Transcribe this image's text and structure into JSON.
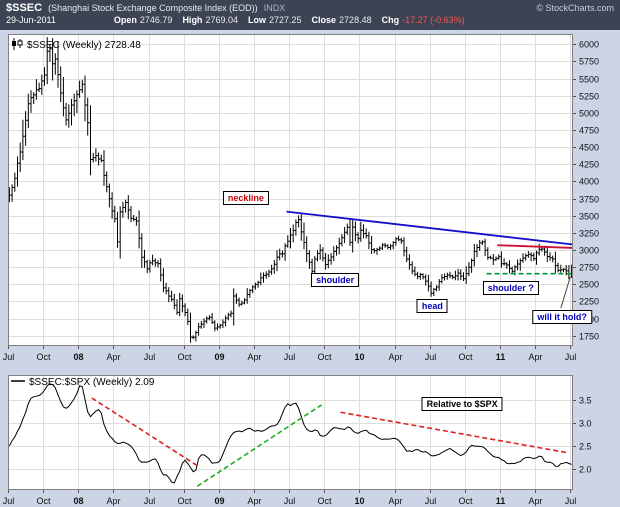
{
  "header": {
    "symbol": "$SSEC",
    "name": "(Shanghai Stock Exchange Composite Index (EOD))",
    "exchange": "INDX",
    "source": "© StockCharts.com",
    "date": "29-Jun-2011",
    "quote": [
      {
        "label": "Open",
        "value": "2746.79"
      },
      {
        "label": "High",
        "value": "2769.04"
      },
      {
        "label": "Low",
        "value": "2727.25"
      },
      {
        "label": "Close",
        "value": "2728.48"
      },
      {
        "label": "Chg",
        "value": "-17.27 (-0.63%)",
        "negative": true
      }
    ]
  },
  "colors": {
    "surround": "#ccd4e6",
    "header_bg": "#3c4454",
    "plot_bg": "#ffffff",
    "grid": "#dedede",
    "border": "#808080",
    "bar": "#000000",
    "chg_negative": "#ff5050",
    "neckline_blue": "#1111cc",
    "resistance_red": "#cc1133",
    "support_green": "#009933",
    "dash_red": "#dd2222",
    "dash_green": "#22aa22",
    "label_blue": "#0000bb",
    "label_red": "#cc0000"
  },
  "chart_data": [
    {
      "type": "ohlc",
      "title": "$SSEC (Weekly) 2728.48",
      "last": 2728.48,
      "weeks": 209,
      "ylim": [
        1600,
        6150
      ],
      "yticks": [
        "6000",
        "5750",
        "5500",
        "5250",
        "5000",
        "4750",
        "4500",
        "4250",
        "4000",
        "3750",
        "3500",
        "3250",
        "3000",
        "2750",
        "2500",
        "2250",
        "2000",
        "1750"
      ],
      "xticks": [
        {
          "label": "Jul",
          "week": 0
        },
        {
          "label": "Oct",
          "week": 13
        },
        {
          "label": "08",
          "week": 26,
          "year": true
        },
        {
          "label": "Apr",
          "week": 39
        },
        {
          "label": "Jul",
          "week": 52
        },
        {
          "label": "Oct",
          "week": 65
        },
        {
          "label": "09",
          "week": 78,
          "year": true
        },
        {
          "label": "Apr",
          "week": 91
        },
        {
          "label": "Jul",
          "week": 104
        },
        {
          "label": "Oct",
          "week": 117
        },
        {
          "label": "10",
          "week": 130,
          "year": true
        },
        {
          "label": "Apr",
          "week": 143
        },
        {
          "label": "Jul",
          "week": 156
        },
        {
          "label": "Oct",
          "week": 169
        },
        {
          "label": "11",
          "week": 182,
          "year": true
        },
        {
          "label": "Apr",
          "week": 195
        },
        {
          "label": "Jul",
          "week": 208
        }
      ],
      "close_keypoints": [
        [
          0,
          3820
        ],
        [
          2,
          4050
        ],
        [
          4,
          4430
        ],
        [
          5,
          4660
        ],
        [
          7,
          5110
        ],
        [
          8,
          5220
        ],
        [
          10,
          5310
        ],
        [
          12,
          5450
        ],
        [
          13,
          5550
        ],
        [
          14,
          5900
        ],
        [
          15,
          5950
        ],
        [
          16,
          5700
        ],
        [
          17,
          5780
        ],
        [
          19,
          5320
        ],
        [
          21,
          4870
        ],
        [
          23,
          5100
        ],
        [
          25,
          5260
        ],
        [
          27,
          5390
        ],
        [
          29,
          4860
        ],
        [
          30,
          4320
        ],
        [
          32,
          4370
        ],
        [
          34,
          4300
        ],
        [
          36,
          3900
        ],
        [
          38,
          3580
        ],
        [
          39,
          3450
        ],
        [
          40,
          3100
        ],
        [
          41,
          3560
        ],
        [
          43,
          3680
        ],
        [
          45,
          3470
        ],
        [
          47,
          3430
        ],
        [
          49,
          2900
        ],
        [
          51,
          2740
        ],
        [
          53,
          2860
        ],
        [
          55,
          2800
        ],
        [
          57,
          2450
        ],
        [
          59,
          2340
        ],
        [
          61,
          2200
        ],
        [
          62,
          2080
        ],
        [
          63,
          2290
        ],
        [
          65,
          2090
        ],
        [
          66,
          1950
        ],
        [
          67,
          1720
        ],
        [
          68,
          1730
        ],
        [
          70,
          1870
        ],
        [
          72,
          1970
        ],
        [
          74,
          2010
        ],
        [
          76,
          1860
        ],
        [
          78,
          1900
        ],
        [
          80,
          2010
        ],
        [
          82,
          2080
        ],
        [
          83,
          2320
        ],
        [
          85,
          2200
        ],
        [
          87,
          2280
        ],
        [
          89,
          2400
        ],
        [
          91,
          2500
        ],
        [
          93,
          2580
        ],
        [
          95,
          2650
        ],
        [
          97,
          2720
        ],
        [
          99,
          2900
        ],
        [
          101,
          2960
        ],
        [
          102,
          3060
        ],
        [
          104,
          3200
        ],
        [
          106,
          3400
        ],
        [
          107,
          3440
        ],
        [
          108,
          3260
        ],
        [
          110,
          2960
        ],
        [
          112,
          2700
        ],
        [
          113,
          2860
        ],
        [
          115,
          3010
        ],
        [
          117,
          2780
        ],
        [
          119,
          2910
        ],
        [
          121,
          3050
        ],
        [
          123,
          3170
        ],
        [
          125,
          3330
        ],
        [
          126,
          3100
        ],
        [
          127,
          3320
        ],
        [
          129,
          3160
        ],
        [
          130,
          3280
        ],
        [
          132,
          3200
        ],
        [
          134,
          2990
        ],
        [
          136,
          3000
        ],
        [
          138,
          3060
        ],
        [
          140,
          3050
        ],
        [
          142,
          3100
        ],
        [
          143,
          3150
        ],
        [
          145,
          3130
        ],
        [
          147,
          2870
        ],
        [
          149,
          2700
        ],
        [
          151,
          2600
        ],
        [
          152,
          2655
        ],
        [
          154,
          2550
        ],
        [
          156,
          2380
        ],
        [
          158,
          2470
        ],
        [
          160,
          2600
        ],
        [
          162,
          2650
        ],
        [
          164,
          2610
        ],
        [
          166,
          2650
        ],
        [
          168,
          2590
        ],
        [
          169,
          2660
        ],
        [
          170,
          2740
        ],
        [
          172,
          2970
        ],
        [
          174,
          3100
        ],
        [
          175,
          3130
        ],
        [
          177,
          2890
        ],
        [
          179,
          2870
        ],
        [
          181,
          2890
        ],
        [
          182,
          2810
        ],
        [
          184,
          2790
        ],
        [
          186,
          2700
        ],
        [
          188,
          2800
        ],
        [
          190,
          2880
        ],
        [
          192,
          2950
        ],
        [
          194,
          2880
        ],
        [
          195,
          2960
        ],
        [
          197,
          3030
        ],
        [
          199,
          2900
        ],
        [
          201,
          2870
        ],
        [
          203,
          2710
        ],
        [
          205,
          2730
        ],
        [
          207,
          2640
        ],
        [
          208,
          2728
        ]
      ],
      "trendlines": [
        {
          "x1": 103,
          "y1": 3560,
          "x2": 209,
          "y2": 3080,
          "color": "#1111cc",
          "width": 1.8,
          "dash": ""
        },
        {
          "x1": 181,
          "y1": 3070,
          "x2": 209,
          "y2": 3030,
          "color": "#cc1133",
          "width": 1.8,
          "dash": ""
        },
        {
          "x1": 177,
          "y1": 2655,
          "x2": 209,
          "y2": 2655,
          "color": "#009933",
          "width": 1.6,
          "dash": "5,3"
        },
        {
          "x1": 204.5,
          "y1": 2150,
          "x2": 208,
          "y2": 2610,
          "color": "#444444",
          "width": 1,
          "dash": ""
        }
      ],
      "annotations": [
        {
          "text": "neckline",
          "color": "#cc0000",
          "week": 88,
          "value": 3760
        },
        {
          "text": "shoulder",
          "color": "#0000bb",
          "week": 121,
          "value": 2560
        },
        {
          "text": "shoulder ?",
          "color": "#0000bb",
          "week": 186,
          "value": 2440
        },
        {
          "text": "head",
          "color": "#0000bb",
          "week": 157,
          "value": 2190
        },
        {
          "text": "will it hold?",
          "color": "#0000bb",
          "week": 205,
          "value": 2020
        }
      ]
    },
    {
      "type": "line",
      "title": "$SSEC:$SPX (Weekly) 2.09",
      "last": 2.09,
      "weeks": 209,
      "ylim": [
        1.55,
        4.05
      ],
      "yticks": [
        "3.5",
        "3.0",
        "2.5",
        "2.0"
      ],
      "xticks": [
        {
          "label": "Jul",
          "week": 0
        },
        {
          "label": "Oct",
          "week": 13
        },
        {
          "label": "08",
          "week": 26,
          "year": true
        },
        {
          "label": "Apr",
          "week": 39
        },
        {
          "label": "Jul",
          "week": 52
        },
        {
          "label": "Oct",
          "week": 65
        },
        {
          "label": "09",
          "week": 78,
          "year": true
        },
        {
          "label": "Apr",
          "week": 91
        },
        {
          "label": "Jul",
          "week": 104
        },
        {
          "label": "Oct",
          "week": 117
        },
        {
          "label": "10",
          "week": 130,
          "year": true
        },
        {
          "label": "Apr",
          "week": 143
        },
        {
          "label": "Jul",
          "week": 156
        },
        {
          "label": "Oct",
          "week": 169
        },
        {
          "label": "11",
          "week": 182,
          "year": true
        },
        {
          "label": "Apr",
          "week": 195
        },
        {
          "label": "Jul",
          "week": 208
        }
      ],
      "value_keypoints": [
        [
          0,
          2.47
        ],
        [
          3,
          2.75
        ],
        [
          6,
          3.15
        ],
        [
          8,
          3.54
        ],
        [
          10,
          3.58
        ],
        [
          13,
          3.66
        ],
        [
          15,
          3.88
        ],
        [
          17,
          3.83
        ],
        [
          19,
          3.55
        ],
        [
          21,
          3.29
        ],
        [
          23,
          3.4
        ],
        [
          25,
          3.56
        ],
        [
          27,
          3.91
        ],
        [
          29,
          3.4
        ],
        [
          30,
          3.1
        ],
        [
          32,
          3.25
        ],
        [
          34,
          3.33
        ],
        [
          36,
          2.86
        ],
        [
          38,
          2.7
        ],
        [
          39,
          2.62
        ],
        [
          41,
          2.54
        ],
        [
          43,
          2.6
        ],
        [
          45,
          2.52
        ],
        [
          47,
          2.4
        ],
        [
          49,
          2.15
        ],
        [
          51,
          2.14
        ],
        [
          53,
          2.2
        ],
        [
          55,
          2.22
        ],
        [
          57,
          1.89
        ],
        [
          59,
          1.87
        ],
        [
          61,
          1.66
        ],
        [
          63,
          1.89
        ],
        [
          65,
          2.22
        ],
        [
          67,
          2.1
        ],
        [
          69,
          1.88
        ],
        [
          71,
          2.34
        ],
        [
          73,
          2.3
        ],
        [
          76,
          2.12
        ],
        [
          78,
          2.14
        ],
        [
          80,
          2.39
        ],
        [
          83,
          2.81
        ],
        [
          85,
          2.83
        ],
        [
          87,
          2.81
        ],
        [
          89,
          2.91
        ],
        [
          91,
          2.85
        ],
        [
          93,
          2.83
        ],
        [
          95,
          2.83
        ],
        [
          97,
          2.93
        ],
        [
          99,
          2.93
        ],
        [
          101,
          3.13
        ],
        [
          103,
          3.42
        ],
        [
          105,
          3.39
        ],
        [
          107,
          3.46
        ],
        [
          108,
          3.23
        ],
        [
          110,
          2.89
        ],
        [
          112,
          2.82
        ],
        [
          114,
          2.87
        ],
        [
          116,
          2.71
        ],
        [
          118,
          2.74
        ],
        [
          120,
          2.89
        ],
        [
          122,
          2.92
        ],
        [
          124,
          2.84
        ],
        [
          126,
          2.94
        ],
        [
          128,
          2.79
        ],
        [
          130,
          2.79
        ],
        [
          132,
          2.86
        ],
        [
          134,
          2.76
        ],
        [
          136,
          2.72
        ],
        [
          138,
          2.66
        ],
        [
          140,
          2.64
        ],
        [
          142,
          2.68
        ],
        [
          145,
          2.63
        ],
        [
          147,
          2.42
        ],
        [
          149,
          2.37
        ],
        [
          151,
          2.44
        ],
        [
          153,
          2.36
        ],
        [
          155,
          2.37
        ],
        [
          157,
          2.29
        ],
        [
          159,
          2.33
        ],
        [
          161,
          2.37
        ],
        [
          163,
          2.46
        ],
        [
          165,
          2.4
        ],
        [
          167,
          2.31
        ],
        [
          169,
          2.32
        ],
        [
          171,
          2.53
        ],
        [
          173,
          2.52
        ],
        [
          175,
          2.51
        ],
        [
          177,
          2.42
        ],
        [
          179,
          2.29
        ],
        [
          181,
          2.26
        ],
        [
          183,
          2.19
        ],
        [
          185,
          2.12
        ],
        [
          187,
          2.13
        ],
        [
          189,
          2.16
        ],
        [
          191,
          2.24
        ],
        [
          193,
          2.27
        ],
        [
          195,
          2.23
        ],
        [
          197,
          2.31
        ],
        [
          199,
          2.13
        ],
        [
          201,
          2.15
        ],
        [
          203,
          2.04
        ],
        [
          205,
          2.13
        ],
        [
          207,
          2.17
        ],
        [
          208,
          2.09
        ]
      ],
      "trendlines": [
        {
          "x1": 31,
          "y1": 3.55,
          "x2": 70,
          "y2": 2.08,
          "color": "#dd2222",
          "width": 1.6,
          "dash": "5,3"
        },
        {
          "x1": 70,
          "y1": 1.63,
          "x2": 116,
          "y2": 3.4,
          "color": "#22aa22",
          "width": 1.6,
          "dash": "5,3"
        },
        {
          "x1": 123,
          "y1": 3.24,
          "x2": 207,
          "y2": 2.36,
          "color": "#dd2222",
          "width": 1.6,
          "dash": "5,3"
        }
      ],
      "annotations": [
        {
          "text": "Relative to $SPX",
          "color": "#000000",
          "week": 168,
          "value": 3.42
        }
      ]
    }
  ]
}
